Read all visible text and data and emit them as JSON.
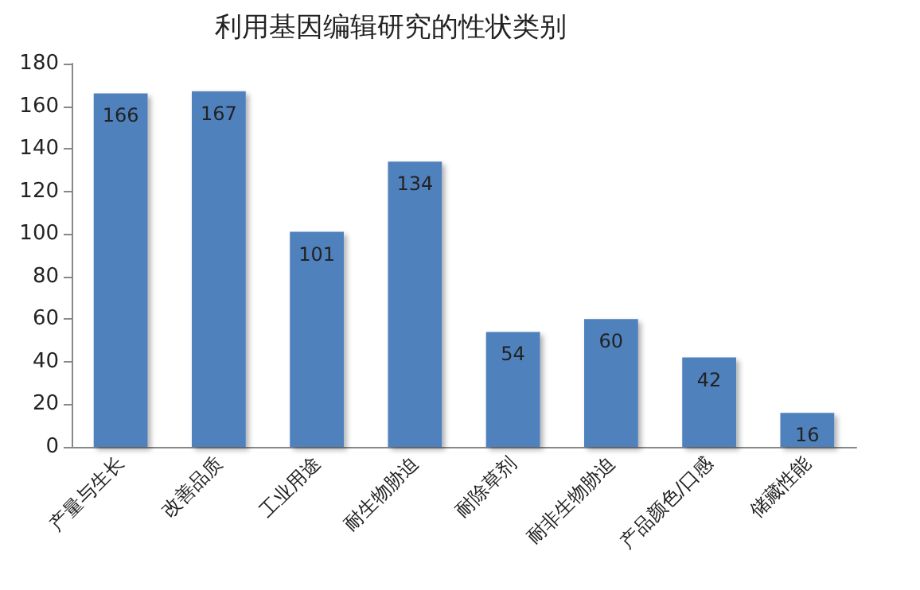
{
  "chart_data": {
    "type": "bar",
    "title": "利用基因编辑研究的性状类别",
    "categories": [
      "产量与生长",
      "改善品质",
      "工业用途",
      "耐生物胁迫",
      "耐除草剂",
      "耐非生物胁迫",
      "产品颜色/口感",
      "储藏性能"
    ],
    "values": [
      166,
      167,
      101,
      134,
      54,
      60,
      42,
      16
    ],
    "color": "#4f81bd",
    "ylim": [
      0,
      180
    ],
    "yticks": [
      0,
      20,
      40,
      60,
      80,
      100,
      120,
      140,
      160,
      180
    ],
    "data_labels": true
  }
}
